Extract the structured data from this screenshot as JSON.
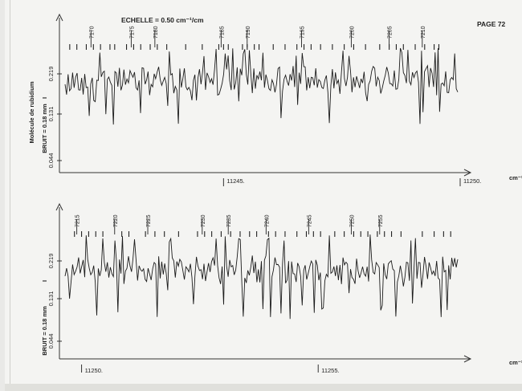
{
  "page": {
    "header_scale": "ECHELLE = 0.50 cm⁻¹/cm",
    "page_number": "PAGE 72"
  },
  "chart_data": [
    {
      "type": "line",
      "ylabel_species": "Molécule de rubidium",
      "ylabel_noise": "BRUIT = 0.18 mm",
      "ylabel_intensity": "I",
      "x_unit": "cm⁻¹",
      "y_ticks": [
        "0.219",
        "0.131",
        "0.044"
      ],
      "x_ticks": [
        {
          "label": "11245.",
          "value": 11245
        },
        {
          "label": "11250.",
          "value": 11250
        }
      ],
      "xlim": [
        11241.6,
        11250.0
      ],
      "line_numbers": [
        "7170",
        "7175",
        "7180",
        "7185",
        "7190",
        "7195",
        "7200",
        "7205",
        "7210"
      ],
      "line_label_positions": [
        11242.25,
        11243.1,
        11243.6,
        11245.0,
        11245.55,
        11246.7,
        11247.75,
        11248.55,
        11249.25
      ],
      "line_markers": [
        11241.75,
        11241.9,
        11242.1,
        11242.25,
        11242.4,
        11242.6,
        11242.7,
        11242.95,
        11243.1,
        11243.25,
        11243.45,
        11243.6,
        11243.8,
        11244.2,
        11244.55,
        11244.9,
        11245.0,
        11245.1,
        11245.4,
        11245.5,
        11245.65,
        11245.75,
        11246.05,
        11246.3,
        11246.55,
        11246.7,
        11246.85,
        11247.05,
        11247.3,
        11247.55,
        11247.75,
        11248.0,
        11248.3,
        11248.5,
        11248.65,
        11248.8,
        11249.05,
        11249.25,
        11249.45,
        11249.55
      ]
    },
    {
      "type": "line",
      "ylabel_noise": "BRUIT = 0.18 mm",
      "ylabel_intensity": "I",
      "x_unit": "cm⁻¹",
      "y_ticks": [
        "0.219",
        "0.131",
        "0.044"
      ],
      "x_ticks": [
        {
          "label": "11250.",
          "value": 11250
        },
        {
          "label": "11255.",
          "value": 11255
        }
      ],
      "xlim": [
        11249.6,
        11258.0
      ],
      "line_numbers": [
        "7215",
        "7220",
        "7225",
        "7230",
        "7235",
        "7240",
        "7245",
        "7250",
        "7255"
      ],
      "line_label_positions": [
        11249.95,
        11250.75,
        11251.45,
        11252.6,
        11253.15,
        11253.95,
        11254.85,
        11255.75,
        11256.35
      ],
      "line_markers": [
        11249.85,
        11250.0,
        11250.15,
        11250.3,
        11250.45,
        11250.85,
        11251.0,
        11251.35,
        11251.55,
        11251.75,
        11252.05,
        11252.45,
        11252.6,
        11252.75,
        11252.95,
        11253.15,
        11253.35,
        11253.55,
        11253.7,
        11253.95,
        11254.1,
        11254.3,
        11254.55,
        11254.75,
        11254.9,
        11255.05,
        11255.35,
        11255.55,
        11255.75,
        11255.9,
        11256.05,
        11256.25,
        11256.4,
        11256.55,
        11256.75,
        11257.2,
        11257.45,
        11257.65,
        11257.8
      ]
    }
  ]
}
